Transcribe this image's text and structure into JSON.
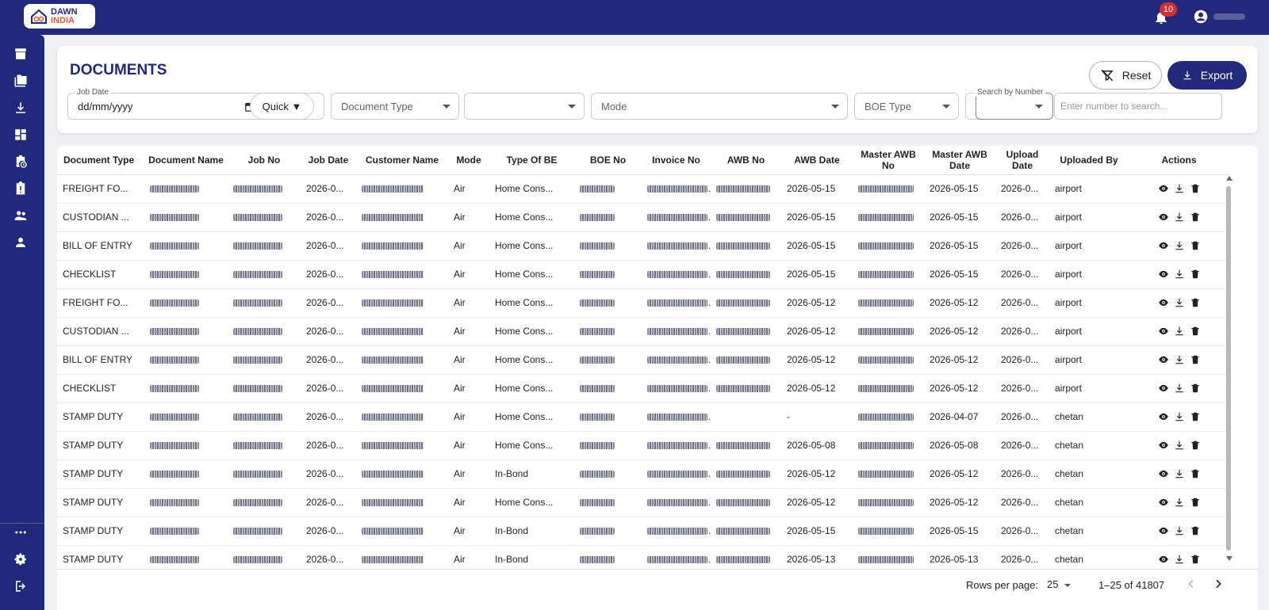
{
  "app": {
    "logo_line1": "DAWN",
    "logo_line2": "INDIA",
    "notification_count": "10",
    "brand_color": "#23297a",
    "accent_color": "#e2563b"
  },
  "sidebar": {
    "items": [
      {
        "icon": "archive-icon"
      },
      {
        "icon": "folders-icon"
      },
      {
        "icon": "download-icon"
      },
      {
        "icon": "dashboard-icon"
      },
      {
        "icon": "clipboard-clock-icon"
      },
      {
        "icon": "clipboard-alert-icon"
      },
      {
        "icon": "users-icon"
      },
      {
        "icon": "user-icon"
      }
    ],
    "bottom_items": [
      {
        "icon": "more-icon"
      },
      {
        "icon": "settings-icon"
      },
      {
        "icon": "logout-icon"
      }
    ]
  },
  "header": {
    "title": "DOCUMENTS",
    "reset_label": "Reset",
    "export_label": "Export"
  },
  "filters": {
    "job_date_label": "Job Date",
    "job_date_value": "dd/mm/yyyy",
    "quick_label": "Quick ▼",
    "document_type_placeholder": "Document Type",
    "mode_placeholder": "Mode",
    "boe_type_placeholder": "BOE Type",
    "search_by_number_label": "Search by Number",
    "search_placeholder": "Enter number to search..."
  },
  "table": {
    "columns": [
      "Document Type",
      "Document Name",
      "Job No",
      "Job Date",
      "Customer Name",
      "Mode",
      "Type Of BE",
      "BOE No",
      "Invoice No",
      "AWB No",
      "AWB Date",
      "Master AWB No",
      "Master AWB Date",
      "Upload Date",
      "Uploaded By",
      "Actions"
    ],
    "rows": [
      {
        "doc_type": "FREIGHT FO...",
        "job_date": "2026-0...",
        "mode": "Air",
        "type_of_be": "Home Cons...",
        "awb_date": "2026-05-15",
        "master_awb_date": "2026-05-15",
        "upload_date": "2026-0...",
        "uploaded_by": "airport"
      },
      {
        "doc_type": "CUSTODIAN ...",
        "job_date": "2026-0...",
        "mode": "Air",
        "type_of_be": "Home Cons...",
        "awb_date": "2026-05-15",
        "master_awb_date": "2026-05-15",
        "upload_date": "2026-0...",
        "uploaded_by": "airport"
      },
      {
        "doc_type": "BILL OF ENTRY",
        "job_date": "2026-0...",
        "mode": "Air",
        "type_of_be": "Home Cons...",
        "awb_date": "2026-05-15",
        "master_awb_date": "2026-05-15",
        "upload_date": "2026-0...",
        "uploaded_by": "airport"
      },
      {
        "doc_type": "CHECKLIST",
        "job_date": "2026-0...",
        "mode": "Air",
        "type_of_be": "Home Cons...",
        "awb_date": "2026-05-15",
        "master_awb_date": "2026-05-15",
        "upload_date": "2026-0...",
        "uploaded_by": "airport"
      },
      {
        "doc_type": "FREIGHT FO...",
        "job_date": "2026-0...",
        "mode": "Air",
        "type_of_be": "Home Cons...",
        "awb_date": "2026-05-12",
        "master_awb_date": "2026-05-12",
        "upload_date": "2026-0...",
        "uploaded_by": "airport"
      },
      {
        "doc_type": "CUSTODIAN ...",
        "job_date": "2026-0...",
        "mode": "Air",
        "type_of_be": "Home Cons...",
        "awb_date": "2026-05-12",
        "master_awb_date": "2026-05-12",
        "upload_date": "2026-0...",
        "uploaded_by": "airport"
      },
      {
        "doc_type": "BILL OF ENTRY",
        "job_date": "2026-0...",
        "mode": "Air",
        "type_of_be": "Home Cons...",
        "awb_date": "2026-05-12",
        "master_awb_date": "2026-05-12",
        "upload_date": "2026-0...",
        "uploaded_by": "airport"
      },
      {
        "doc_type": "CHECKLIST",
        "job_date": "2026-0...",
        "mode": "Air",
        "type_of_be": "Home Cons...",
        "awb_date": "2026-05-12",
        "master_awb_date": "2026-05-12",
        "upload_date": "2026-0...",
        "uploaded_by": "airport"
      },
      {
        "doc_type": "STAMP DUTY",
        "job_date": "2026-0...",
        "mode": "Air",
        "type_of_be": "Home Cons...",
        "awb_date": "-",
        "master_awb_date": "2026-04-07",
        "upload_date": "2026-0...",
        "uploaded_by": "chetan"
      },
      {
        "doc_type": "STAMP DUTY",
        "job_date": "2026-0...",
        "mode": "Air",
        "type_of_be": "Home Cons...",
        "awb_date": "2026-05-08",
        "master_awb_date": "2026-05-08",
        "upload_date": "2026-0...",
        "uploaded_by": "chetan"
      },
      {
        "doc_type": "STAMP DUTY",
        "job_date": "2026-0...",
        "mode": "Air",
        "type_of_be": "In-Bond",
        "awb_date": "2026-05-12",
        "master_awb_date": "2026-05-12",
        "upload_date": "2026-0...",
        "uploaded_by": "chetan"
      },
      {
        "doc_type": "STAMP DUTY",
        "job_date": "2026-0...",
        "mode": "Air",
        "type_of_be": "Home Cons...",
        "awb_date": "2026-05-12",
        "master_awb_date": "2026-05-12",
        "upload_date": "2026-0...",
        "uploaded_by": "chetan"
      },
      {
        "doc_type": "STAMP DUTY",
        "job_date": "2026-0...",
        "mode": "Air",
        "type_of_be": "In-Bond",
        "awb_date": "2026-05-15",
        "master_awb_date": "2026-05-15",
        "upload_date": "2026-0...",
        "uploaded_by": "chetan"
      },
      {
        "doc_type": "STAMP DUTY",
        "job_date": "2026-0...",
        "mode": "Air",
        "type_of_be": "In-Bond",
        "awb_date": "2026-05-13",
        "master_awb_date": "2026-05-13",
        "upload_date": "2026-0...",
        "uploaded_by": "chetan"
      }
    ]
  },
  "pagination": {
    "rows_per_page_label": "Rows per page:",
    "rows_per_page_value": "25",
    "range_text": "1–25 of 41807"
  }
}
